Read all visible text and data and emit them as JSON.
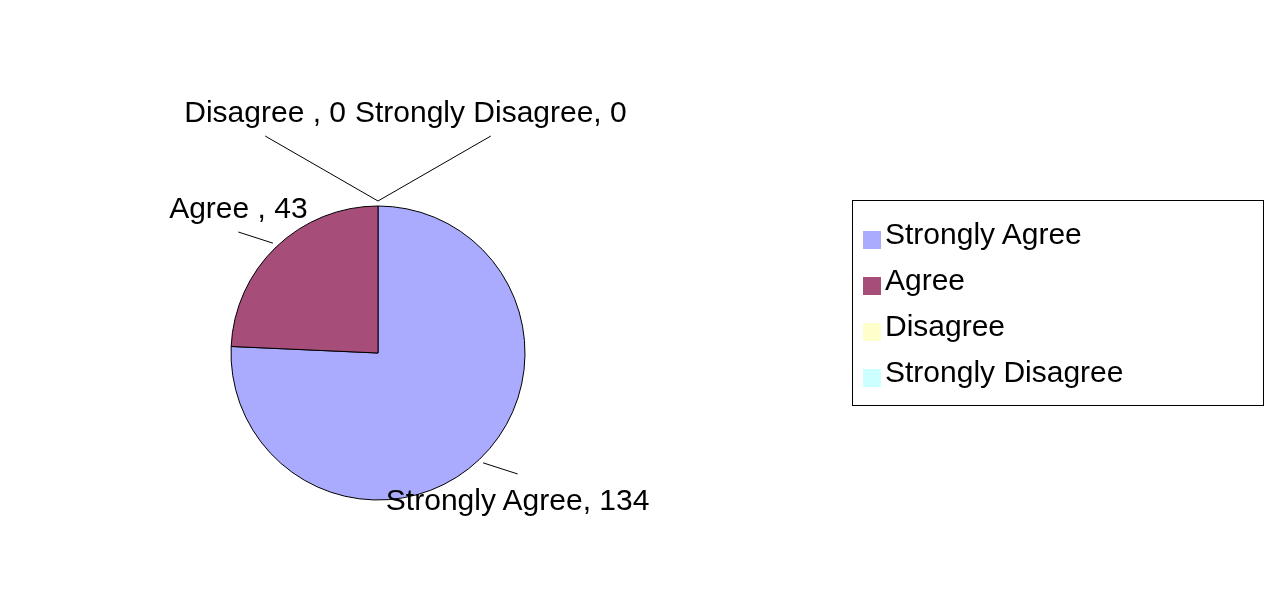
{
  "chart_data": {
    "type": "pie",
    "categories": [
      "Strongly Agree",
      "Agree",
      "Disagree",
      "Strongly Disagree"
    ],
    "values": [
      134,
      43,
      0,
      0
    ],
    "colors": [
      "#aaaaff",
      "#a64d79",
      "#ffffcc",
      "#ccffff"
    ],
    "value_labels": [
      "Strongly Agree, 134",
      "Agree , 43",
      "Disagree , 0",
      "Strongly Disagree, 0"
    ],
    "legend": "right"
  }
}
